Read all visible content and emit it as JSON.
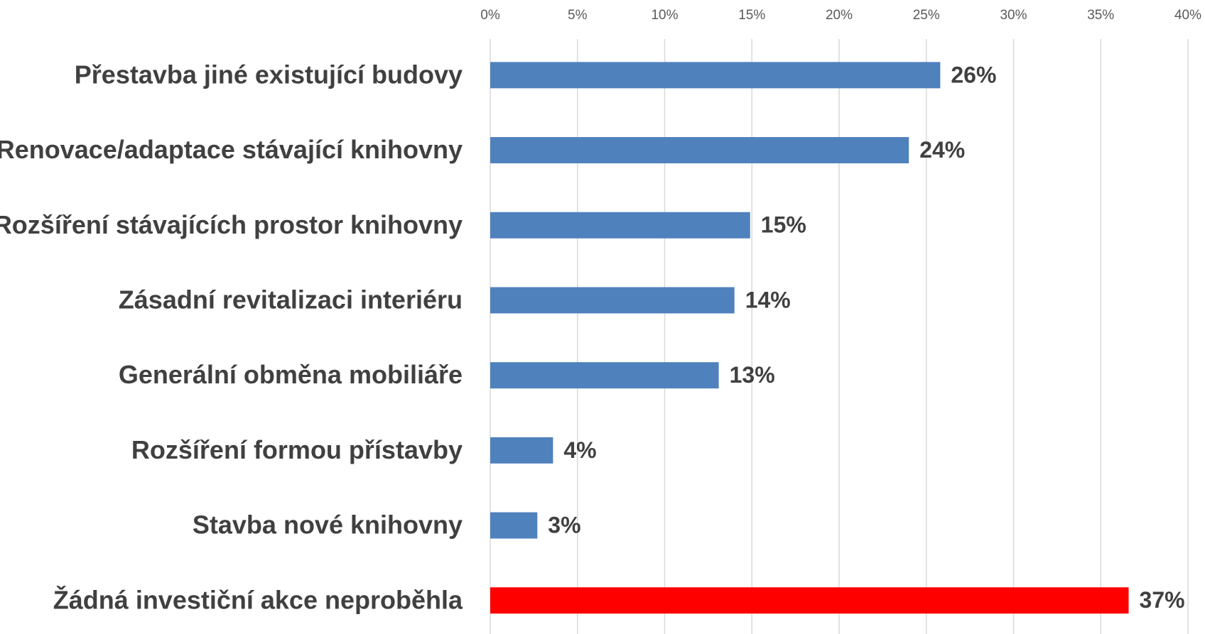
{
  "chart_data": {
    "type": "hbar",
    "categories": [
      "Přestavba jiné existující budovy",
      "Renovace/adaptace stávající knihovny",
      "Rozšíření stávajících prostor knihovny",
      "Zásadní revitalizaci interiéru",
      "Generální obměna mobiliáře",
      "Rozšíření formou přístavby",
      "Stavba nové knihovny",
      "Žádná investiční akce neproběhla"
    ],
    "values": [
      25.8,
      24,
      14.9,
      14,
      13.1,
      3.6,
      2.7,
      36.6
    ],
    "value_labels": [
      "26%",
      "24%",
      "15%",
      "14%",
      "13%",
      "4%",
      "3%",
      "37%"
    ],
    "colors": [
      "#4f81bd",
      "#4f81bd",
      "#4f81bd",
      "#4f81bd",
      "#4f81bd",
      "#4f81bd",
      "#4f81bd",
      "#ff0000"
    ],
    "xlim": [
      0,
      40
    ],
    "xticks": [
      {
        "value": 0,
        "label": "0%"
      },
      {
        "value": 5,
        "label": "5%"
      },
      {
        "value": 10,
        "label": "10%"
      },
      {
        "value": 15,
        "label": "15%"
      },
      {
        "value": 20,
        "label": "20%"
      },
      {
        "value": 25,
        "label": "25%"
      },
      {
        "value": 30,
        "label": "30%"
      },
      {
        "value": 35,
        "label": "35%"
      },
      {
        "value": 40,
        "label": "40%"
      }
    ],
    "grid": true
  }
}
